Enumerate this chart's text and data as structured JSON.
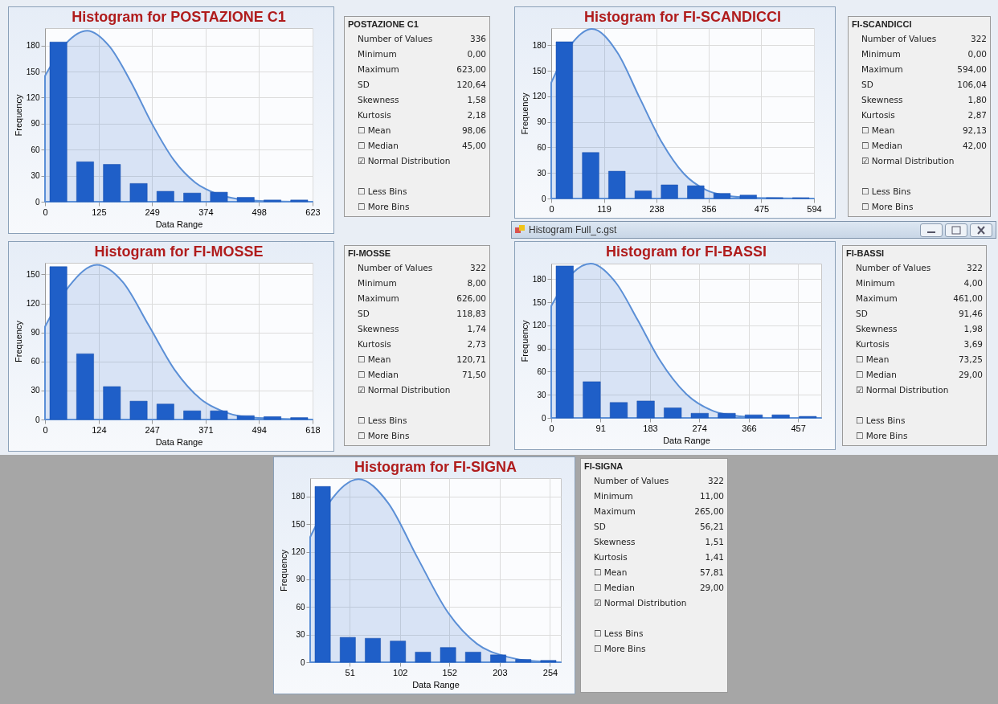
{
  "chart_data": [
    {
      "type": "histogram",
      "title": "Histogram for POSTAZIONE C1",
      "xlabel": "Data Range",
      "ylabel": "Frequency",
      "bins": [
        0,
        62.3,
        124.6,
        186.9,
        249.2,
        311.5,
        373.8,
        436.1,
        498.4,
        560.7,
        623
      ],
      "values": [
        184,
        46,
        43,
        21,
        12,
        10,
        11,
        5,
        2,
        2
      ],
      "color": "#1f5fc8",
      "xlim": [
        0,
        623
      ],
      "xticks": [
        0,
        125,
        249,
        374,
        498,
        623
      ],
      "ylim": [
        0,
        200
      ],
      "yticks": [
        0,
        30,
        60,
        90,
        120,
        150,
        180
      ],
      "grid": true,
      "series": [
        {
          "type": "area",
          "color": "#5b8fd6",
          "x": [
            0,
            50,
            98,
            150,
            200,
            250,
            300,
            350,
            400,
            450,
            500,
            623
          ],
          "values": [
            145,
            183,
            197,
            179,
            138,
            89,
            48,
            22,
            9,
            3,
            1,
            0
          ]
        }
      ]
    },
    {
      "type": "other",
      "title": "POSTAZIONE C1",
      "categories": [
        "Number of Values",
        "Minimum",
        "Maximum",
        "SD",
        "Skewness",
        "Kurtosis",
        "☐ Mean",
        "☐ Median",
        "☑ Normal Distribution",
        null,
        "☐ Less Bins",
        "☐ More Bins"
      ],
      "value_labels": [
        "336",
        "0,00",
        "623,00",
        "120,64",
        "1,58",
        "2,18",
        "98,06",
        "45,00",
        null,
        null,
        null,
        null
      ]
    },
    {
      "type": "histogram",
      "title": "Histogram for FI-SCANDICCI",
      "ylabel": "Frequency",
      "bins": [
        0,
        59.4,
        118.8,
        178.2,
        237.6,
        297,
        356.4,
        415.8,
        475.2,
        534.6,
        594
      ],
      "values": [
        184,
        54,
        32,
        9,
        16,
        15,
        6,
        4,
        1,
        1
      ],
      "color": "#1f5fc8",
      "xlim": [
        0,
        594
      ],
      "xticks": [
        0,
        119,
        238,
        356,
        475,
        594
      ],
      "ylim": [
        0,
        200
      ],
      "yticks": [
        0,
        30,
        60,
        90,
        120,
        150,
        180
      ],
      "grid": true,
      "series": [
        {
          "type": "area",
          "color": "#5b8fd6",
          "x": [
            0,
            50,
            92,
            150,
            200,
            250,
            300,
            350,
            400,
            450,
            594
          ],
          "values": [
            136,
            184,
            199,
            171,
            118,
            66,
            29,
            10,
            3,
            1,
            0
          ]
        }
      ]
    },
    {
      "type": "other",
      "title": "FI-SCANDICCI",
      "categories": [
        "Number of Values",
        "Minimum",
        "Maximum",
        "SD",
        "Skewness",
        "Kurtosis",
        "☐ Mean",
        "☐ Median",
        "☑ Normal Distribution",
        null,
        "☐ Less Bins",
        "☐ More Bins"
      ],
      "value_labels": [
        "322",
        "0,00",
        "594,00",
        "106,04",
        "1,80",
        "2,87",
        "92,13",
        "42,00",
        null,
        null,
        null,
        null
      ]
    },
    {
      "type": "other",
      "title": "Histogram Full_c.gst"
    },
    {
      "type": "histogram",
      "title": "Histogram for FI-MOSSE",
      "xlabel": "Data Range",
      "ylabel": "Frequency",
      "bins": [
        0,
        61.8,
        123.6,
        185.4,
        247.2,
        309,
        370.8,
        432.6,
        494.4,
        556.2,
        618
      ],
      "values": [
        158,
        68,
        34,
        19,
        16,
        9,
        9,
        4,
        3,
        2
      ],
      "color": "#1f5fc8",
      "xlim": [
        0,
        618
      ],
      "xticks": [
        0,
        124,
        247,
        371,
        494,
        618
      ],
      "ylim": [
        0,
        162
      ],
      "yticks": [
        0,
        30,
        60,
        90,
        120,
        150
      ],
      "grid": true,
      "series": [
        {
          "type": "area",
          "color": "#5b8fd6",
          "x": [
            0,
            56,
            120,
            180,
            240,
            300,
            360,
            420,
            480,
            618
          ],
          "values": [
            96,
            138,
            160,
            142,
            97,
            51,
            21,
            7,
            2,
            0
          ]
        }
      ]
    },
    {
      "type": "other",
      "title": "FI-MOSSE",
      "categories": [
        "Number of Values",
        "Minimum",
        "Maximum",
        "SD",
        "Skewness",
        "Kurtosis",
        "☐ Mean",
        "☐ Median",
        "☑ Normal Distribution",
        null,
        "☐ Less Bins",
        "☐ More Bins"
      ],
      "value_labels": [
        "322",
        "8,00",
        "626,00",
        "118,83",
        "1,74",
        "2,73",
        "120,71",
        "71,50",
        null,
        null,
        null,
        null
      ]
    },
    {
      "type": "histogram",
      "title": "Histogram for FI-BASSI",
      "xlabel": "Data Range",
      "ylabel": "Frequency",
      "bins": [
        0,
        50,
        100,
        150,
        200,
        250,
        300,
        350,
        400,
        450,
        500
      ],
      "values": [
        197,
        47,
        20,
        22,
        13,
        6,
        6,
        4,
        4,
        2
      ],
      "color": "#1f5fc8",
      "xlim": [
        0,
        500
      ],
      "xticks": [
        0,
        91,
        183,
        274,
        366,
        457
      ],
      "ylim": [
        0,
        200
      ],
      "yticks": [
        0,
        30,
        60,
        90,
        120,
        150,
        180
      ],
      "grid": true,
      "series": [
        {
          "type": "area",
          "color": "#5b8fd6",
          "x": [
            0,
            40,
            73,
            120,
            160,
            200,
            250,
            300,
            350,
            400,
            500
          ],
          "values": [
            145,
            188,
            200,
            175,
            127,
            76,
            31,
            9,
            2,
            0,
            0
          ]
        }
      ]
    },
    {
      "type": "other",
      "title": "FI-BASSI",
      "categories": [
        "Number of Values",
        "Minimum",
        "Maximum",
        "SD",
        "Skewness",
        "Kurtosis",
        "☐ Mean",
        "☐ Median",
        "☑ Normal Distribution",
        null,
        "☐ Less Bins",
        "☐ More Bins"
      ],
      "value_labels": [
        "322",
        "4,00",
        "461,00",
        "91,46",
        "1,98",
        "3,69",
        "73,25",
        "29,00",
        null,
        null,
        null,
        null
      ]
    },
    {
      "type": "histogram",
      "title": "Histogram for FI-SIGNA",
      "xlabel": "Data Range",
      "ylabel": "Frequency",
      "bins": [
        11,
        36.4,
        61.8,
        87.2,
        112.6,
        138,
        163.4,
        188.8,
        214.2,
        239.6,
        265
      ],
      "values": [
        191,
        27,
        26,
        23,
        11,
        16,
        11,
        8,
        3,
        2
      ],
      "color": "#1f5fc8",
      "xlim": [
        11,
        265
      ],
      "xticks": [
        51,
        102,
        152,
        203,
        254
      ],
      "ylim": [
        0,
        200
      ],
      "yticks": [
        0,
        30,
        60,
        90,
        120,
        150,
        180
      ],
      "grid": true,
      "series": [
        {
          "type": "area",
          "color": "#5b8fd6",
          "x": [
            11,
            30,
            60,
            90,
            120,
            150,
            180,
            210,
            240,
            265
          ],
          "values": [
            136,
            173,
            199,
            173,
            113,
            55,
            20,
            6,
            1,
            0
          ]
        }
      ]
    },
    {
      "type": "other",
      "title": "FI-SIGNA",
      "categories": [
        "Number of Values",
        "Minimum",
        "Maximum",
        "SD",
        "Skewness",
        "Kurtosis",
        "☐ Mean",
        "☐ Median",
        "☑ Normal Distribution",
        null,
        "☐ Less Bins",
        "☐ More Bins"
      ],
      "value_labels": [
        "322",
        "11,00",
        "265,00",
        "56,21",
        "1,51",
        "1,41",
        "57,81",
        "29,00",
        null,
        null,
        null,
        null
      ]
    }
  ]
}
